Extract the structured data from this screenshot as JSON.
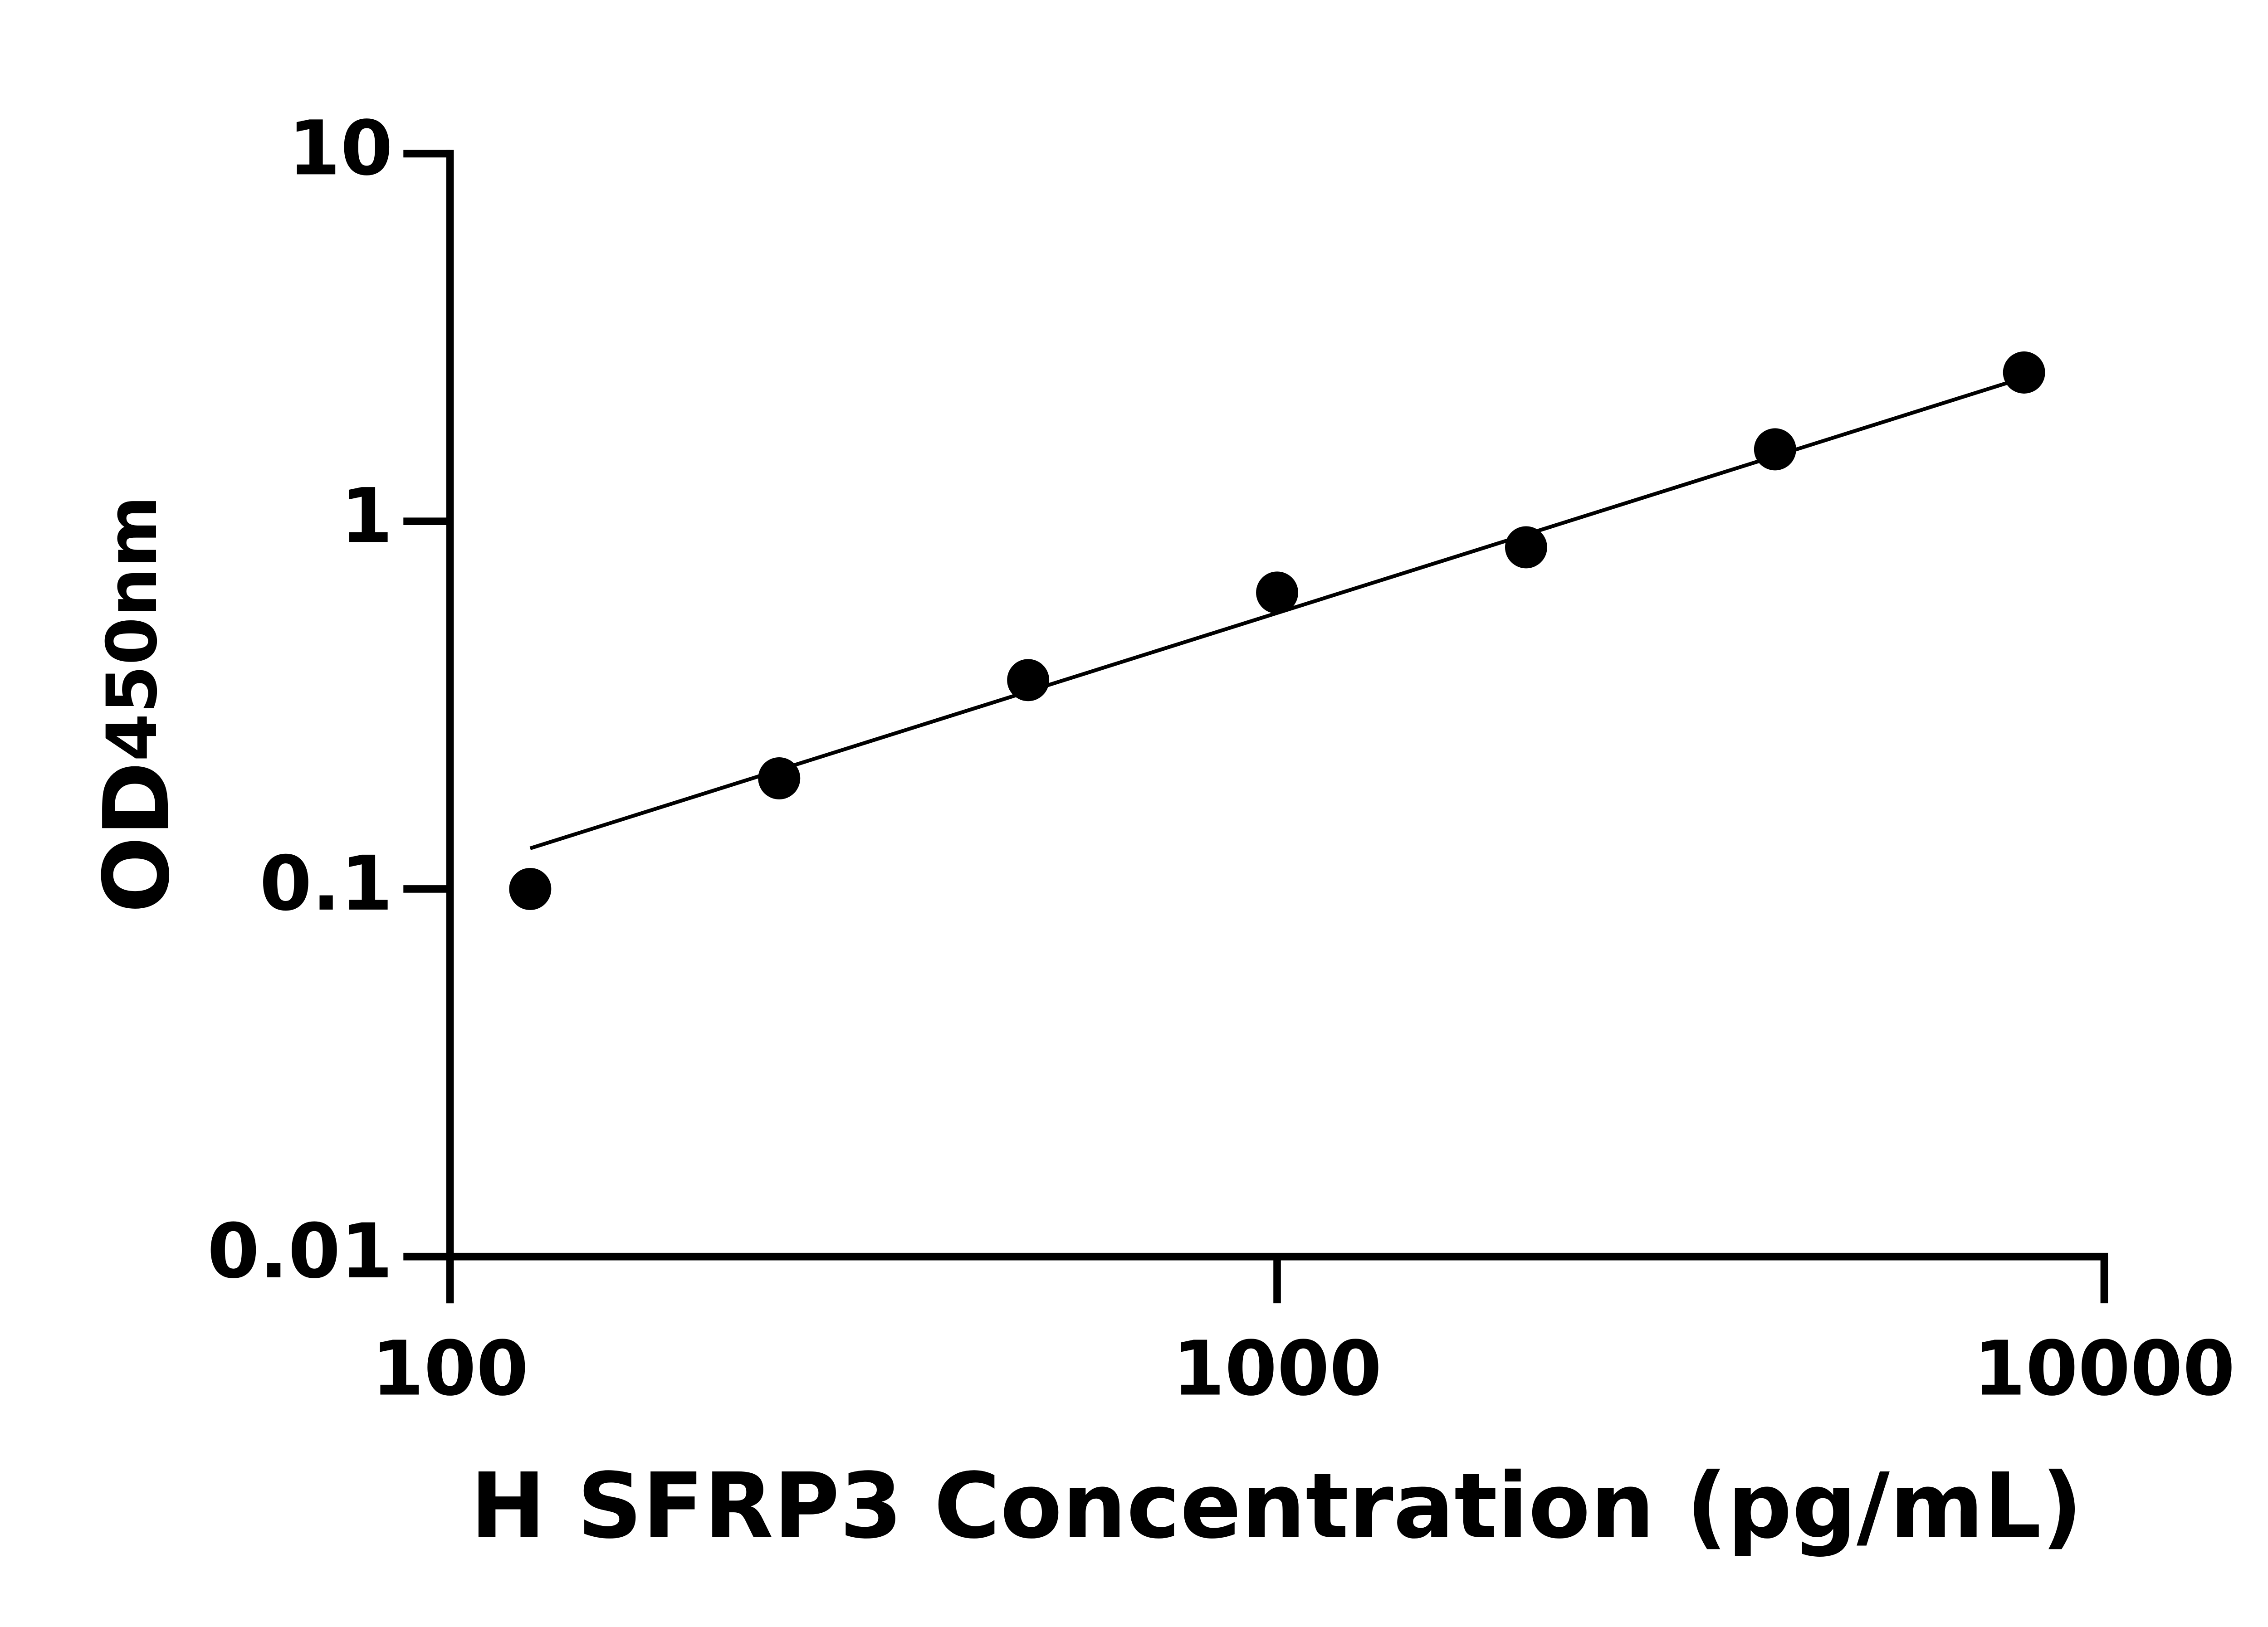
{
  "chart_data": {
    "type": "scatter",
    "x_label": "H SFRP3 Concentration (pg/mL)",
    "y_label": "OD",
    "y_label_sub": "450nm",
    "log_x": true,
    "log_y": true,
    "xlim": [
      100,
      10000
    ],
    "xticks": [
      100,
      1000,
      10000
    ],
    "ylim": [
      0.01,
      10
    ],
    "yticks": [
      0.01,
      0.1,
      1,
      10
    ],
    "color": "#000000",
    "series": [
      {
        "x": [
          125,
          250,
          500,
          1000,
          2000,
          4000,
          8000
        ],
        "values": [
          0.1,
          0.2,
          0.37,
          0.64,
          0.85,
          1.57,
          2.54
        ]
      }
    ],
    "fit": {
      "x": [
        125,
        8000
      ],
      "values": [
        0.129,
        2.46
      ]
    }
  }
}
